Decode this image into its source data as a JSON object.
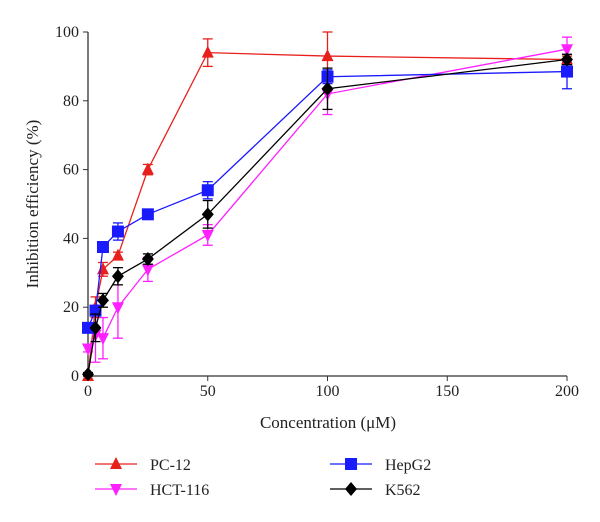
{
  "chart_data": {
    "type": "line",
    "title": "",
    "xlabel": "Concentration (μM)",
    "ylabel": "Inhibition efficiency (%)",
    "xlim": [
      0,
      200
    ],
    "ylim": [
      0,
      100
    ],
    "xticks": [
      0,
      50,
      100,
      150,
      200
    ],
    "yticks": [
      0,
      20,
      40,
      60,
      80,
      100
    ],
    "grid": false,
    "legend_position": "bottom",
    "x": [
      0,
      3.125,
      6.25,
      12.5,
      25,
      50,
      100,
      200
    ],
    "series": [
      {
        "name": "PC-12",
        "color": "#e8201c",
        "marker": "triangle-up",
        "values": [
          0,
          20,
          31,
          35,
          60,
          94,
          93,
          92
        ],
        "errors": [
          1,
          3,
          2,
          1,
          1.5,
          4,
          7,
          1
        ]
      },
      {
        "name": "HCT-116",
        "color": "#ff20ff",
        "marker": "triangle-down",
        "values": [
          8,
          12,
          11,
          20,
          31,
          41,
          82,
          95
        ],
        "errors": [
          1,
          8,
          6,
          9,
          3.5,
          3,
          6,
          3.5
        ]
      },
      {
        "name": "HepG2",
        "color": "#1a1aff",
        "marker": "square",
        "values": [
          14,
          19,
          37.5,
          42,
          47,
          54,
          87,
          88.5
        ],
        "errors": [
          1,
          1.5,
          1,
          2.5,
          1,
          2.5,
          2,
          5
        ]
      },
      {
        "name": "K562",
        "color": "#000000",
        "marker": "diamond",
        "values": [
          0.5,
          14,
          22,
          29,
          34,
          47,
          83.5,
          92
        ],
        "errors": [
          0.5,
          4,
          2,
          2.5,
          1.5,
          4,
          6,
          1.5
        ]
      }
    ]
  }
}
